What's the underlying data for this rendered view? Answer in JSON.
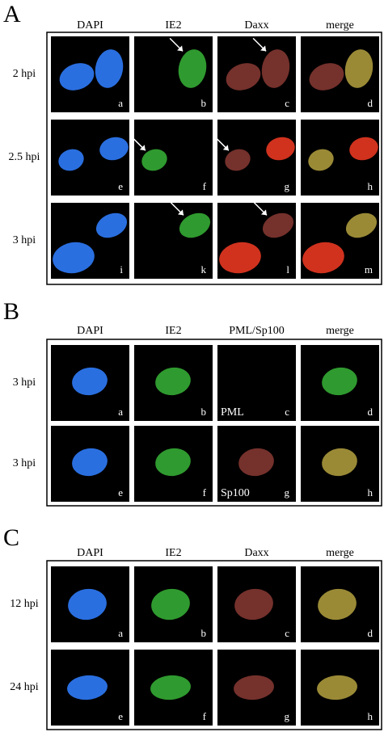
{
  "panels": [
    {
      "label": "A",
      "columns": [
        "DAPI",
        "IE2",
        "Daxx",
        "merge"
      ],
      "rows": [
        {
          "label": "2 hpi",
          "tiles": [
            {
              "letter": "a"
            },
            {
              "letter": "b"
            },
            {
              "letter": "c"
            },
            {
              "letter": "d"
            }
          ]
        },
        {
          "label": "2.5 hpi",
          "tiles": [
            {
              "letter": "e"
            },
            {
              "letter": "f"
            },
            {
              "letter": "g"
            },
            {
              "letter": "h"
            }
          ]
        },
        {
          "label": "3 hpi",
          "tiles": [
            {
              "letter": "i"
            },
            {
              "letter": "k"
            },
            {
              "letter": "l"
            },
            {
              "letter": "m"
            }
          ]
        }
      ]
    },
    {
      "label": "B",
      "columns": [
        "DAPI",
        "IE2",
        "PML/Sp100",
        "merge"
      ],
      "rows": [
        {
          "label": "3 hpi",
          "tiles": [
            {
              "letter": "a"
            },
            {
              "letter": "b"
            },
            {
              "letter": "c",
              "caption": "PML"
            },
            {
              "letter": "d"
            }
          ]
        },
        {
          "label": "3 hpi",
          "tiles": [
            {
              "letter": "e"
            },
            {
              "letter": "f"
            },
            {
              "letter": "g",
              "caption": "Sp100"
            },
            {
              "letter": "h"
            }
          ]
        }
      ]
    },
    {
      "label": "C",
      "columns": [
        "DAPI",
        "IE2",
        "Daxx",
        "merge"
      ],
      "rows": [
        {
          "label": "12 hpi",
          "tiles": [
            {
              "letter": "a"
            },
            {
              "letter": "b"
            },
            {
              "letter": "c"
            },
            {
              "letter": "d"
            }
          ]
        },
        {
          "label": "24 hpi",
          "tiles": [
            {
              "letter": "e"
            },
            {
              "letter": "f"
            },
            {
              "letter": "g"
            },
            {
              "letter": "h"
            }
          ]
        }
      ]
    }
  ]
}
